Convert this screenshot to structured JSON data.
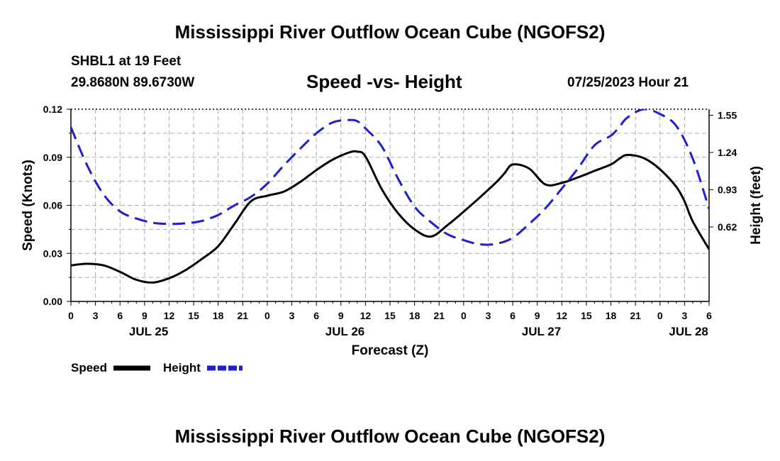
{
  "header": {
    "title": "Mississippi River Outflow Ocean Cube (NGOFS2)",
    "station": "SHBL1 at 19 Feet",
    "coordinates": "29.8680N  89.6730W",
    "subtitle": "Speed -vs- Height",
    "datetime": "07/25/2023 Hour 21"
  },
  "footer": {
    "title": "Mississippi River Outflow Ocean Cube (NGOFS2)"
  },
  "legend": {
    "speed_label": "Speed",
    "height_label": "Height"
  },
  "colors": {
    "speed": "#000000",
    "height": "#1f1fd0",
    "grid": "#aaaaaa"
  },
  "chart_data": {
    "type": "line",
    "title": "Speed -vs- Height",
    "xlabel": "Forecast (Z)",
    "ylabel": "Speed (Knots)",
    "y2label": "Height (feet)",
    "xlim": [
      0,
      78
    ],
    "ylim": [
      0,
      0.12
    ],
    "y2lim": [
      0,
      1.6
    ],
    "x_ticks": [
      0,
      3,
      6,
      9,
      12,
      15,
      18,
      21,
      24,
      27,
      30,
      33,
      36,
      39,
      42,
      45,
      48,
      51,
      54,
      57,
      60,
      63,
      66,
      69,
      72,
      75,
      78
    ],
    "x_tick_labels": [
      "0",
      "3",
      "6",
      "9",
      "12",
      "15",
      "18",
      "21",
      "0",
      "3",
      "6",
      "9",
      "12",
      "15",
      "18",
      "21",
      "0",
      "3",
      "6",
      "9",
      "12",
      "15",
      "18",
      "21",
      "0",
      "3",
      "6"
    ],
    "y_ticks": [
      0,
      0.03,
      0.06,
      0.09,
      0.12
    ],
    "y_tick_labels": [
      "0.00",
      "0.03",
      "0.06",
      "0.09",
      "0.12"
    ],
    "y2_ticks": [
      0.62,
      0.93,
      1.24,
      1.55
    ],
    "y2_tick_labels": [
      "0.62",
      "0.93",
      "1.24",
      "1.55"
    ],
    "date_labels": [
      {
        "x": 9.5,
        "label": "JUL 25"
      },
      {
        "x": 33.5,
        "label": "JUL 26"
      },
      {
        "x": 57.5,
        "label": "JUL 27"
      },
      {
        "x": 75.5,
        "label": "JUL 28"
      }
    ],
    "grid": true,
    "series": [
      {
        "name": "Speed",
        "axis": "left",
        "style": "solid",
        "x": [
          0,
          2,
          4,
          6,
          8,
          10,
          12,
          14,
          16,
          18,
          20,
          22,
          24,
          26,
          28,
          30,
          32,
          34,
          35,
          36,
          38,
          40,
          42,
          44,
          46,
          48,
          50,
          52,
          53,
          54,
          56,
          58,
          60,
          62,
          64,
          66,
          67,
          68,
          70,
          72,
          74,
          75,
          76,
          78
        ],
        "values": [
          0.0225,
          0.0235,
          0.0225,
          0.0185,
          0.0135,
          0.0118,
          0.0145,
          0.0195,
          0.0265,
          0.0345,
          0.0485,
          0.0625,
          0.066,
          0.0685,
          0.0745,
          0.082,
          0.0885,
          0.093,
          0.0935,
          0.0905,
          0.07,
          0.055,
          0.045,
          0.0405,
          0.0475,
          0.056,
          0.065,
          0.0745,
          0.08,
          0.0855,
          0.083,
          0.073,
          0.074,
          0.0775,
          0.0815,
          0.0855,
          0.089,
          0.0915,
          0.0895,
          0.0825,
          0.0715,
          0.0625,
          0.05,
          0.0325
        ]
      },
      {
        "name": "Height",
        "axis": "right",
        "style": "dashed",
        "x": [
          0,
          2,
          4,
          6,
          8,
          10,
          12,
          14,
          16,
          18,
          20,
          22,
          24,
          26,
          28,
          30,
          32,
          34,
          35,
          36,
          38,
          40,
          42,
          44,
          46,
          48,
          50,
          52,
          54,
          56,
          58,
          60,
          62,
          64,
          66,
          67,
          68,
          70,
          72,
          74,
          76,
          78
        ],
        "values": [
          1.45,
          1.13,
          0.89,
          0.75,
          0.69,
          0.655,
          0.645,
          0.65,
          0.67,
          0.72,
          0.8,
          0.87,
          0.98,
          1.13,
          1.27,
          1.4,
          1.49,
          1.51,
          1.5,
          1.44,
          1.29,
          1.02,
          0.79,
          0.66,
          0.56,
          0.51,
          0.475,
          0.48,
          0.53,
          0.645,
          0.775,
          0.94,
          1.11,
          1.3,
          1.38,
          1.45,
          1.53,
          1.6,
          1.56,
          1.46,
          1.19,
          0.77
        ]
      }
    ]
  }
}
